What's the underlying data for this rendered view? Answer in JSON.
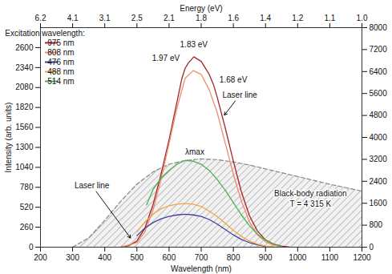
{
  "chart_data": {
    "type": "line",
    "x_label": "Wavelength (nm)",
    "y_label": "Intensity (arb. units)",
    "x2_label": "Energy (eV)",
    "xlim": [
      200,
      1200
    ],
    "xticks": [
      200,
      300,
      400,
      500,
      600,
      700,
      800,
      900,
      1000,
      1100,
      1200
    ],
    "x2ticks": [
      {
        "value": 200,
        "label": "6.2"
      },
      {
        "value": 300,
        "label": "4.1"
      },
      {
        "value": 400,
        "label": "3.1"
      },
      {
        "value": 500,
        "label": "2.5"
      },
      {
        "value": 600,
        "label": "2.1"
      },
      {
        "value": 700,
        "label": "1.8"
      },
      {
        "value": 800,
        "label": "1.6"
      },
      {
        "value": 900,
        "label": "1.4"
      },
      {
        "value": 1000,
        "label": "1.2"
      },
      {
        "value": 1100,
        "label": "1.1"
      },
      {
        "value": 1200,
        "label": "1.0"
      }
    ],
    "ylim": [
      0,
      2860
    ],
    "yticks": [
      0,
      260,
      520,
      780,
      1040,
      1300,
      1560,
      1820,
      2080,
      2340,
      2600
    ],
    "y2lim": [
      0,
      8000
    ],
    "y2ticks": [
      0,
      800,
      1600,
      2400,
      3200,
      4000,
      4800,
      5600,
      6400,
      7200,
      8000
    ],
    "grid": false,
    "legend": "top-left",
    "legend_title": "Excitation wavelength:",
    "series": [
      {
        "name": "975 nm",
        "color": "#a0262a",
        "x": [
          450,
          475,
          500,
          525,
          550,
          575,
          600,
          625,
          640,
          650,
          660,
          677,
          700,
          725,
          738,
          750,
          775,
          800,
          825,
          850,
          875,
          900,
          925,
          950,
          975
        ],
        "values": [
          0,
          20,
          80,
          250,
          550,
          950,
          1400,
          1900,
          2200,
          2330,
          2400,
          2480,
          2420,
          2250,
          2120,
          1950,
          1550,
          1120,
          720,
          410,
          210,
          95,
          40,
          15,
          0
        ]
      },
      {
        "name": "808 nm",
        "color": "#f08a6e",
        "x": [
          450,
          500,
          525,
          550,
          575,
          600,
          625,
          650,
          675,
          700,
          725,
          750,
          775,
          800,
          825,
          850,
          875,
          900,
          925,
          950
        ],
        "values": [
          0,
          60,
          200,
          480,
          880,
          1350,
          1820,
          2200,
          2300,
          2250,
          2050,
          1750,
          1350,
          950,
          600,
          330,
          160,
          70,
          25,
          5
        ]
      },
      {
        "name": "476 nm",
        "color": "#3f3f9f",
        "x": [
          500,
          525,
          550,
          575,
          600,
          625,
          650,
          675,
          700,
          725,
          750,
          775,
          800,
          825,
          850,
          875,
          900
        ],
        "values": [
          150,
          250,
          320,
          370,
          400,
          420,
          430,
          420,
          400,
          360,
          300,
          230,
          160,
          100,
          60,
          30,
          10
        ]
      },
      {
        "name": "488 nm",
        "color": "#f5a442",
        "x": [
          500,
          525,
          550,
          575,
          600,
          625,
          650,
          675,
          700,
          725,
          750,
          775,
          800,
          825,
          850,
          875,
          900,
          925
        ],
        "values": [
          200,
          330,
          430,
          500,
          540,
          560,
          570,
          560,
          530,
          470,
          400,
          310,
          220,
          140,
          80,
          40,
          15,
          5
        ]
      },
      {
        "name": "514 nm",
        "color": "#4caf50",
        "x": [
          530,
          550,
          575,
          600,
          625,
          650,
          675,
          700,
          725,
          750,
          775,
          800,
          825,
          850,
          875,
          900,
          925,
          950
        ],
        "values": [
          550,
          750,
          900,
          1000,
          1080,
          1130,
          1120,
          1080,
          1000,
          880,
          740,
          580,
          420,
          280,
          170,
          90,
          40,
          10
        ]
      }
    ],
    "blackbody": {
      "type": "area",
      "color": "#888888",
      "line_style": "dashed",
      "x": [
        300,
        350,
        400,
        450,
        500,
        550,
        600,
        650,
        700,
        750,
        800,
        850,
        900,
        950,
        1000,
        1050,
        1100,
        1150,
        1200
      ],
      "values": [
        0,
        120,
        350,
        600,
        820,
        980,
        1080,
        1130,
        1150,
        1140,
        1110,
        1070,
        1020,
        970,
        920,
        870,
        820,
        775,
        730
      ]
    },
    "annotations": [
      {
        "text": "1.83 eV",
        "x": 677,
        "y": 2640
      },
      {
        "text": "1.97 eV",
        "x": 590,
        "y": 2460
      },
      {
        "text": "1.68 eV",
        "x": 800,
        "y": 2180
      },
      {
        "text": "Laser line",
        "x": 820,
        "y": 1980,
        "point": [
          772,
          1720
        ]
      },
      {
        "text": "Laser line",
        "x": 360,
        "y": 800,
        "point": [
          480,
          120
        ]
      },
      {
        "text": "λmax",
        "x": 680,
        "y": 1240
      },
      {
        "text": "Black-body radiation",
        "x": 1040,
        "y": 700
      },
      {
        "text": "T = 4 315 K",
        "x": 1040,
        "y": 560
      }
    ]
  }
}
